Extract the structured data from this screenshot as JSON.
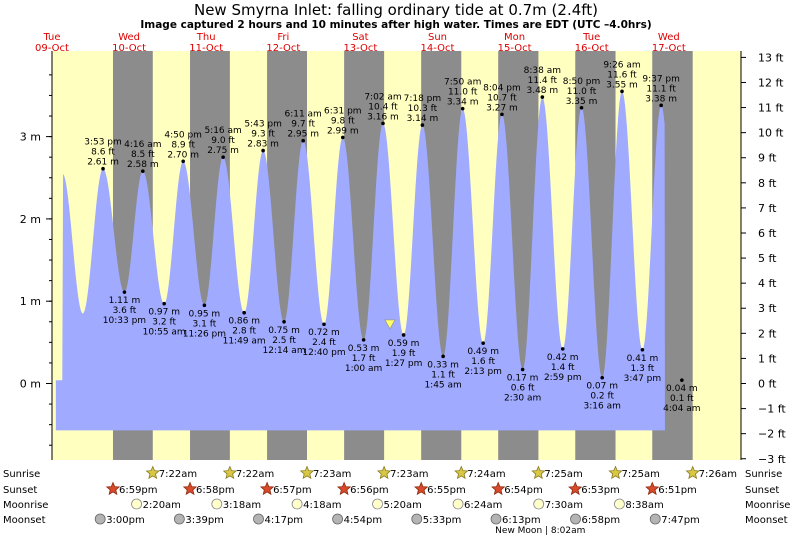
{
  "title": "New Smyrna Inlet: falling  ordinary tide at 0.7m (2.4ft)",
  "subtitle": "Image captured 2 hours and 10 minutes after high water. Times are EDT (UTC –4.0hrs)",
  "colors": {
    "water": "#a0aaff",
    "day": "#ffffc0",
    "night": "#8c8c8c",
    "day_label": "#dd0000",
    "marker": "#ffff66"
  },
  "days": [
    {
      "dow": "Tue",
      "date": "09-Oct"
    },
    {
      "dow": "Wed",
      "date": "10-Oct"
    },
    {
      "dow": "Thu",
      "date": "11-Oct"
    },
    {
      "dow": "Fri",
      "date": "12-Oct"
    },
    {
      "dow": "Sat",
      "date": "13-Oct"
    },
    {
      "dow": "Sun",
      "date": "14-Oct"
    },
    {
      "dow": "Mon",
      "date": "15-Oct"
    },
    {
      "dow": "Tue",
      "date": "16-Oct"
    },
    {
      "dow": "Wed",
      "date": "17-Oct"
    }
  ],
  "axes": {
    "left_ticks": [
      "3 m",
      "2 m",
      "1 m",
      "0 m"
    ],
    "right_ticks": [
      "13 ft",
      "12 ft",
      "11 ft",
      "10 ft",
      "9 ft",
      "8 ft",
      "7 ft",
      "6 ft",
      "5 ft",
      "4 ft",
      "3 ft",
      "2 ft",
      "1 ft",
      "0 ft",
      "−1 ft",
      "−2 ft",
      "−3 ft"
    ]
  },
  "current": {
    "height_m": 0.7
  },
  "chart_data": {
    "type": "area",
    "x_range": [
      "09-Oct 00:00",
      "17-Oct 00:00"
    ],
    "y_unit": "m",
    "ylim_m": [
      -0.9,
      3.9
    ],
    "ylim_ft": [
      -3,
      13
    ],
    "high_tides": [
      {
        "time": "3:53 pm",
        "ft": "8.6 ft",
        "m": "2.61 m",
        "height": 2.61
      },
      {
        "time": "4:16 am",
        "ft": "8.5 ft",
        "m": "2.58 m",
        "height": 2.58
      },
      {
        "time": "4:50 pm",
        "ft": "8.9 ft",
        "m": "2.70 m",
        "height": 2.7
      },
      {
        "time": "5:16 am",
        "ft": "9.0 ft",
        "m": "2.75 m",
        "height": 2.75
      },
      {
        "time": "5:43 pm",
        "ft": "9.3 ft",
        "m": "2.83 m",
        "height": 2.83
      },
      {
        "time": "6:11 am",
        "ft": "9.7 ft",
        "m": "2.95 m",
        "height": 2.95
      },
      {
        "time": "6:31 pm",
        "ft": "9.8 ft",
        "m": "2.99 m",
        "height": 2.99
      },
      {
        "time": "7:02 am",
        "ft": "10.4 ft",
        "m": "3.16 m",
        "height": 3.16
      },
      {
        "time": "7:18 pm",
        "ft": "10.3 ft",
        "m": "3.14 m",
        "height": 3.14
      },
      {
        "time": "7:50 am",
        "ft": "11.0 ft",
        "m": "3.34 m",
        "height": 3.34
      },
      {
        "time": "8:04 pm",
        "ft": "10.7 ft",
        "m": "3.27 m",
        "height": 3.27
      },
      {
        "time": "8:38 am",
        "ft": "11.4 ft",
        "m": "3.48 m",
        "height": 3.48
      },
      {
        "time": "8:50 pm",
        "ft": "11.0 ft",
        "m": "3.35 m",
        "height": 3.35
      },
      {
        "time": "9:26 am",
        "ft": "11.6 ft",
        "m": "3.55 m",
        "height": 3.55
      },
      {
        "time": "9:37 pm",
        "ft": "11.1 ft",
        "m": "3.38 m",
        "height": 3.38
      }
    ],
    "low_tides": [
      {
        "m": "1.11 m",
        "ft": "3.6 ft",
        "time": "10:33 pm",
        "height": 1.11
      },
      {
        "m": "0.97 m",
        "ft": "3.2 ft",
        "time": "10:55 am",
        "height": 0.97
      },
      {
        "m": "0.95 m",
        "ft": "3.1 ft",
        "time": "11:26 pm",
        "height": 0.95
      },
      {
        "m": "0.86 m",
        "ft": "2.8 ft",
        "time": "11:49 am",
        "height": 0.86
      },
      {
        "m": "0.75 m",
        "ft": "2.5 ft",
        "time": "12:14 am",
        "height": 0.75
      },
      {
        "m": "0.72 m",
        "ft": "2.4 ft",
        "time": "12:40 pm",
        "height": 0.72
      },
      {
        "m": "0.53 m",
        "ft": "1.7 ft",
        "time": "1:00 am",
        "height": 0.53
      },
      {
        "m": "0.59 m",
        "ft": "1.9 ft",
        "time": "1:27 pm",
        "height": 0.59
      },
      {
        "m": "0.33 m",
        "ft": "1.1 ft",
        "time": "1:45 am",
        "height": 0.33
      },
      {
        "m": "0.49 m",
        "ft": "1.6 ft",
        "time": "2:13 pm",
        "height": 0.49
      },
      {
        "m": "0.17 m",
        "ft": "0.6 ft",
        "time": "2:30 am",
        "height": 0.17
      },
      {
        "m": "0.42 m",
        "ft": "1.4 ft",
        "time": "2:59 pm",
        "height": 0.42
      },
      {
        "m": "0.07 m",
        "ft": "0.2 ft",
        "time": "3:16 am",
        "height": 0.07
      },
      {
        "m": "0.41 m",
        "ft": "1.3 ft",
        "time": "3:47 pm",
        "height": 0.41
      },
      {
        "m": "0.04 m",
        "ft": "0.1 ft",
        "time": "4:04 am",
        "height": 0.04
      }
    ]
  },
  "rows": {
    "labels": [
      "Sunrise",
      "Sunset",
      "Moonrise",
      "Moonset"
    ],
    "sunrise": [
      "7:22am",
      "7:22am",
      "7:23am",
      "7:23am",
      "7:24am",
      "7:25am",
      "7:25am",
      "7:26am"
    ],
    "sunset": [
      "6:59pm",
      "6:58pm",
      "6:57pm",
      "6:56pm",
      "6:55pm",
      "6:54pm",
      "6:53pm",
      "6:51pm"
    ],
    "moonrise": [
      "2:20am",
      "3:18am",
      "4:18am",
      "5:20am",
      "6:24am",
      "7:30am",
      "8:38am"
    ],
    "moonset": [
      "3:00pm",
      "3:39pm",
      "4:17pm",
      "4:54pm",
      "5:33pm",
      "6:13pm",
      "6:58pm",
      "7:47pm"
    ],
    "new_moon": "New Moon | 8:02am"
  }
}
